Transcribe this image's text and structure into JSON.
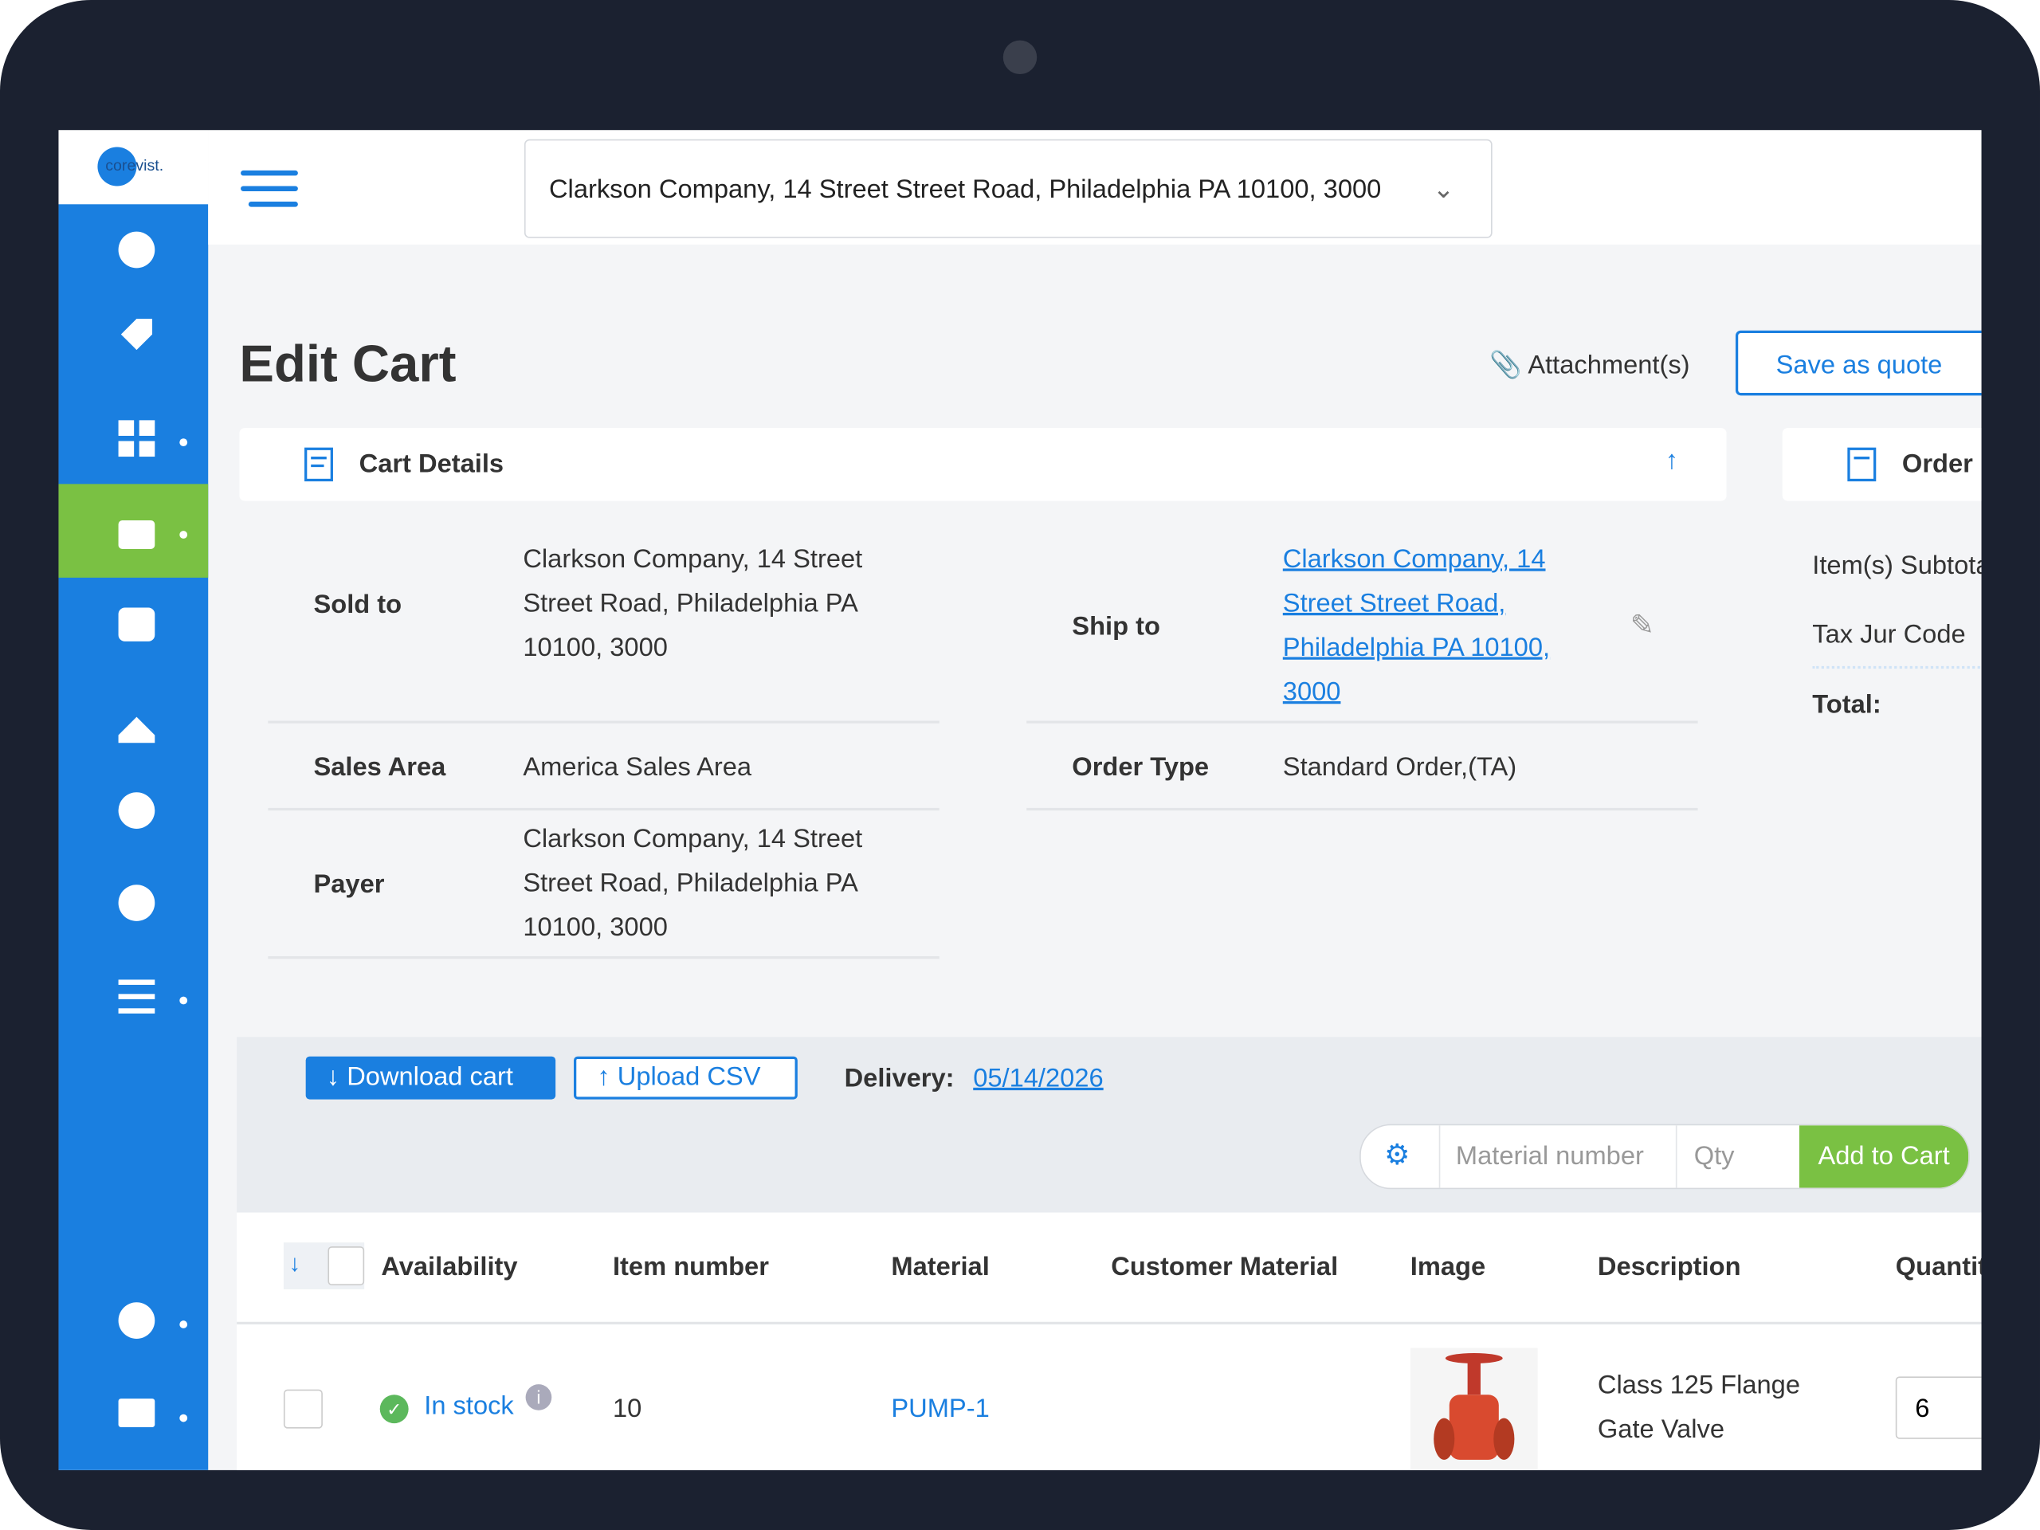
{
  "logo": "corevist.",
  "header": {
    "address": "Clarkson Company, 14 Street Street Road, Philadelphia PA 10100, 3000"
  },
  "page": {
    "title": "Edit Cart",
    "attachments": "Attachment(s)",
    "save_quote": "Save as quote"
  },
  "cart_details": {
    "title": "Cart Details",
    "fields": [
      {
        "label": "Sold to",
        "value": "Clarkson Company, 14 Street Street Road, Philadelphia PA 10100, 3000"
      },
      {
        "label": "Ship to",
        "value": "Clarkson Company, 14 Street Street Road, Philadelphia PA 10100, 3000"
      },
      {
        "label": "Sales Area",
        "value": "America Sales Area"
      },
      {
        "label": "Order Type",
        "value": "Standard Order,(TA)"
      },
      {
        "label": "Payer",
        "value": "Clarkson Company, 14 Street Street Road, Philadelphia PA 10100, 3000"
      }
    ]
  },
  "order_summary": {
    "title": "Order",
    "subtotal": "Item(s) Subtotal",
    "tax": "Tax Jur Code",
    "total": "Total:"
  },
  "toolbar": {
    "download": "Download cart",
    "upload": "Upload CSV",
    "delivery_label": "Delivery:",
    "delivery_date": "05/14/2026",
    "material_placeholder": "Material number",
    "qty_placeholder": "Qty",
    "add": "Add to Cart"
  },
  "table": {
    "headers": [
      "Availability",
      "Item number",
      "Material",
      "Customer Material",
      "Image",
      "Description",
      "Quantity"
    ],
    "rows": [
      {
        "availability": "In stock",
        "item": "10",
        "material": "PUMP-1",
        "description": "Class 125 Flange Gate Valve",
        "quantity": "6"
      }
    ]
  }
}
